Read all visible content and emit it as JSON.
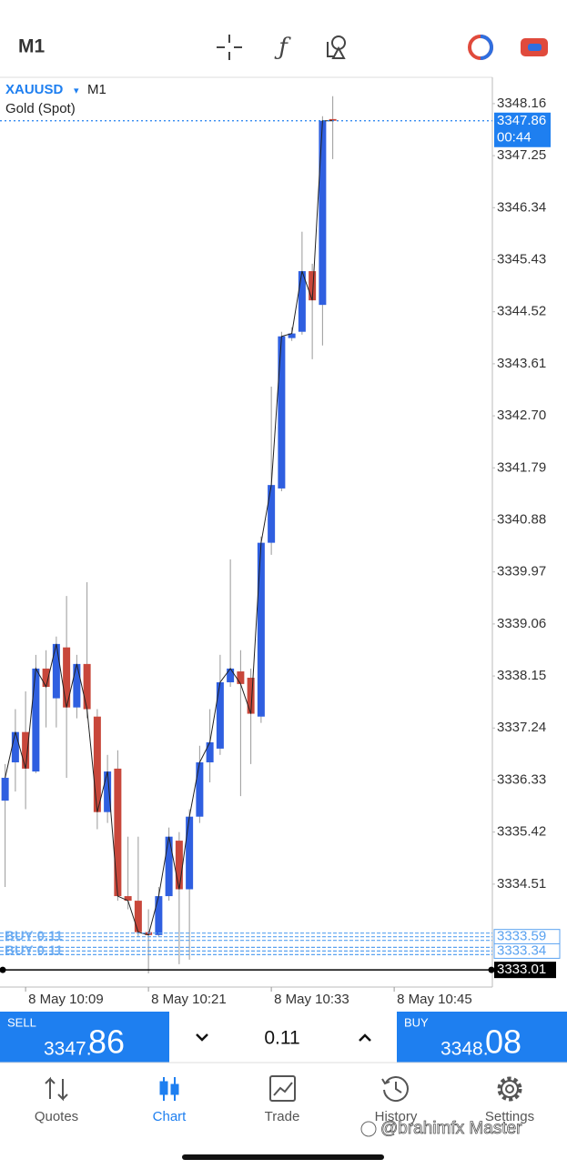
{
  "top_bar": {
    "timeframe": "M1"
  },
  "chart_data": {
    "type": "candlestick",
    "symbol": "XAUUSD",
    "symbol_arrow": "▾",
    "timeframe": "M1",
    "description": "Gold (Spot)",
    "categories": [
      null,
      null,
      "8 May 10:09",
      null,
      null,
      null,
      null,
      null,
      null,
      null,
      null,
      null,
      null,
      null,
      "8 May 10:21",
      null,
      null,
      null,
      null,
      null,
      null,
      null,
      null,
      null,
      null,
      null,
      "8 May 10:33",
      null,
      null,
      null,
      null,
      null,
      null,
      null,
      null,
      null,
      null,
      null,
      "8 May 10:45",
      null,
      null,
      null,
      null,
      null,
      null,
      null,
      null,
      null
    ],
    "open": [
      3335.97,
      3336.64,
      3337.17,
      3336.48,
      3338.28,
      3337.76,
      3338.65,
      3337.6,
      3338.36,
      3337.44,
      3335.77,
      3336.53,
      3334.3,
      3334.22,
      3333.67,
      3333.62,
      3334.3,
      3335.27,
      3334.42,
      3335.69,
      3336.64,
      3336.88,
      3338.04,
      3338.23,
      3338.12,
      3337.44,
      3340.48,
      3341.43,
      3344.06,
      3344.17,
      3345.23,
      3344.64,
      3347.89,
      null,
      null,
      null,
      null,
      null,
      null,
      null,
      null,
      null,
      null,
      null,
      null,
      null,
      null,
      null
    ],
    "high": [
      3336.61,
      3337.57,
      3337.88,
      3338.52,
      3338.6,
      3338.84,
      3339.55,
      3338.52,
      3339.79,
      3337.57,
      3336.77,
      3336.85,
      3335.34,
      3335.34,
      3334.07,
      3334.46,
      3335.5,
      3335.42,
      3335.82,
      3336.93,
      3337.57,
      3338.52,
      3340.19,
      3338.6,
      3338.28,
      3340.59,
      3343.21,
      3344.17,
      3344.25,
      3345.92,
      3345.36,
      3347.94,
      3348.29,
      null,
      null,
      null,
      null,
      null,
      null,
      null,
      null,
      null,
      null,
      null,
      null,
      null,
      null,
      null
    ],
    "low": [
      3334.46,
      3336.13,
      3335.82,
      3336.45,
      3337.25,
      3337.25,
      3336.37,
      3337.41,
      3337.41,
      3335.47,
      3335.58,
      3334.22,
      3334.07,
      3333.59,
      3332.95,
      3333.59,
      3334.22,
      3333.11,
      3333.19,
      3335.58,
      3336.29,
      3336.77,
      3337.96,
      3336.05,
      3336.61,
      3337.33,
      3340.27,
      3341.38,
      3344.01,
      3344.12,
      3343.69,
      3343.93,
      3347.19,
      null,
      null,
      null,
      null,
      null,
      null,
      null,
      null,
      null,
      null,
      null,
      null,
      null,
      null,
      null
    ],
    "close": [
      3336.37,
      3337.17,
      3336.53,
      3338.28,
      3337.96,
      3338.71,
      3337.6,
      3338.36,
      3337.57,
      3335.77,
      3336.48,
      3334.3,
      3334.22,
      3333.67,
      3333.62,
      3334.3,
      3335.34,
      3334.42,
      3335.69,
      3336.64,
      3336.99,
      3338.04,
      3338.28,
      3338.01,
      3337.49,
      3340.48,
      3341.49,
      3344.09,
      3344.14,
      3345.23,
      3344.72,
      3347.86,
      3347.86,
      null,
      null,
      null,
      null,
      null,
      null,
      null,
      null,
      null,
      null,
      null,
      null,
      null,
      null,
      null
    ],
    "up_color": "#2f5fe0",
    "down_color": "#c8473b",
    "line_color": "#222222",
    "ylim": [
      3332.71,
      3348.62
    ],
    "yticks": [
      3348.16,
      3347.25,
      3346.34,
      3345.43,
      3344.52,
      3343.61,
      {
        "value": 3342.7,
        "label": "3342.70"
      },
      3341.79,
      3340.88,
      3339.97,
      3339.06,
      3338.15,
      3337.24,
      3336.33,
      3335.42,
      3334.51
    ],
    "levels": [
      {
        "value": 3347.86,
        "color": "#1e7ff0",
        "timer": "00:44"
      },
      {
        "value": 3333.59,
        "color": "#5aa2f0",
        "order": "BUY 0.11"
      },
      {
        "value": 3333.34,
        "color": "#5aa2f0",
        "order": "BUY 0.11"
      },
      {
        "value": 3333.01,
        "color": "#000000"
      }
    ]
  },
  "order_panel": {
    "sell_label": "SELL",
    "sell_price_main": "3347.",
    "sell_price_big": "86",
    "volume": "0.11",
    "buy_label": "BUY",
    "buy_price_main": "3348.",
    "buy_price_big": "08"
  },
  "tabs": [
    "Quotes",
    "Chart",
    "Trade",
    "History",
    "Settings"
  ],
  "watermark": "@brahimfx Master"
}
